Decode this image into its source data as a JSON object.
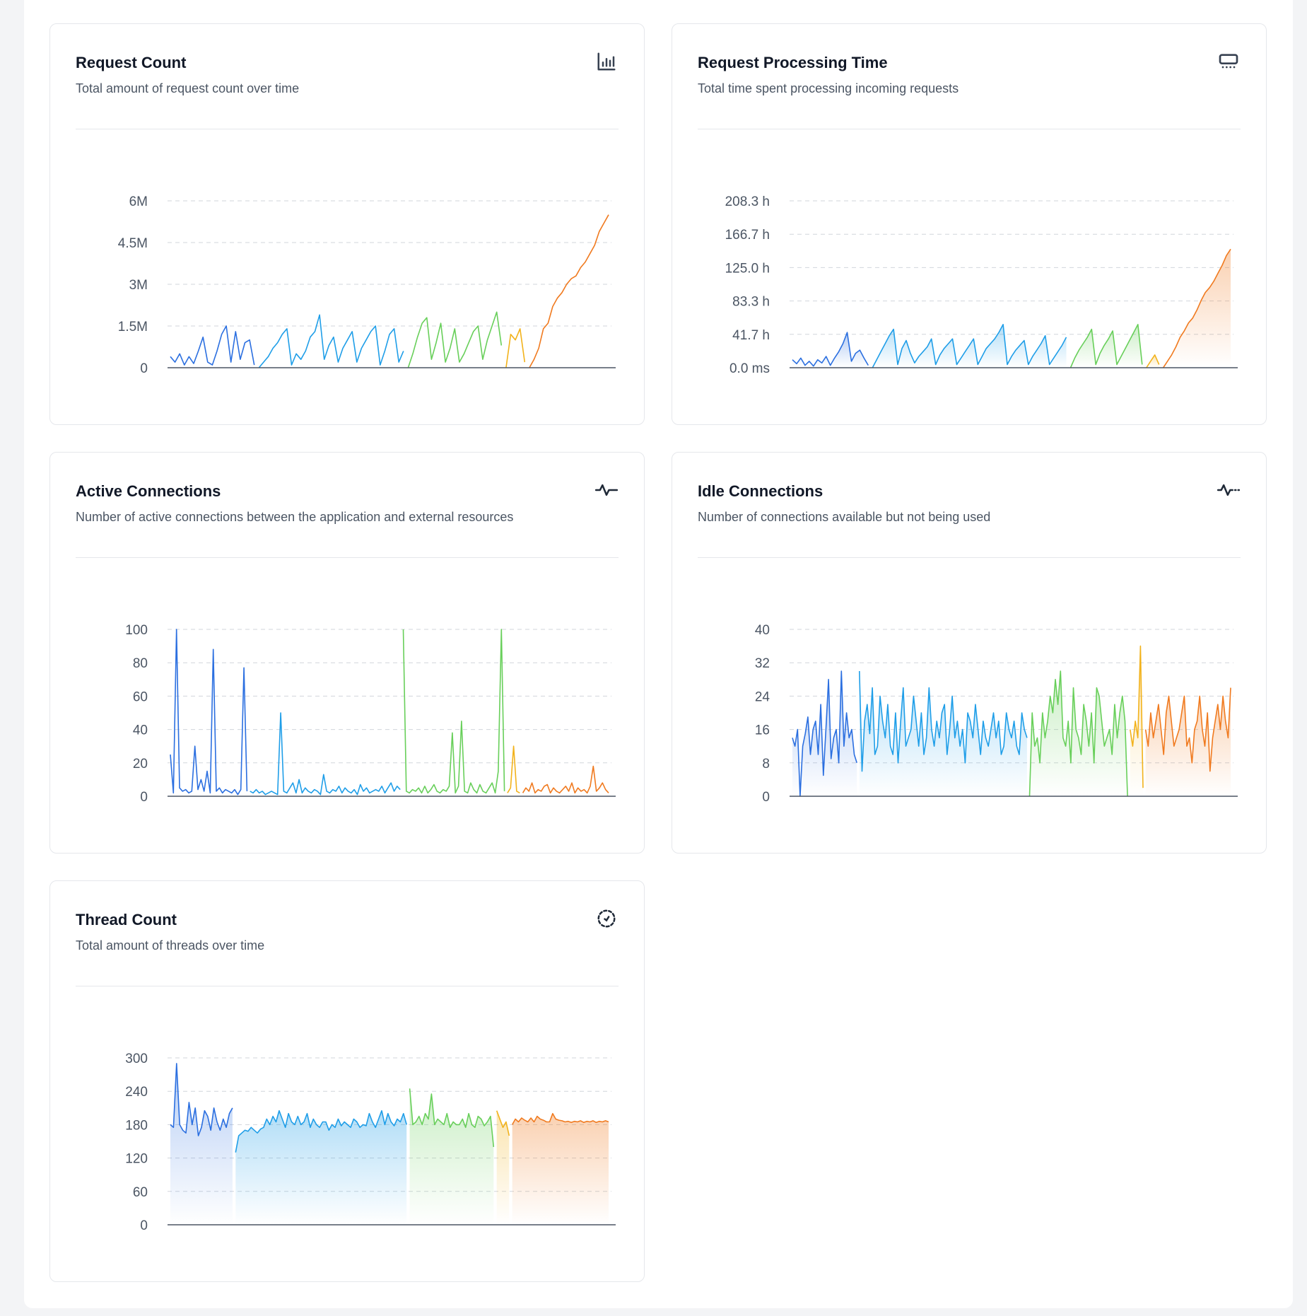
{
  "cards": [
    {
      "id": "request-count",
      "title": "Request Count",
      "subtitle": "Total amount of request count over time",
      "icon": "bar-chart-icon"
    },
    {
      "id": "request-processing-time",
      "title": "Request Processing Time",
      "subtitle": "Total time spent processing incoming requests",
      "icon": "server-icon"
    },
    {
      "id": "active-connections",
      "title": "Active Connections",
      "subtitle": "Number of active connections between the application and external resources",
      "icon": "activity-icon"
    },
    {
      "id": "idle-connections",
      "title": "Idle Connections",
      "subtitle": "Number of connections available but not being used",
      "icon": "activity-dotted-icon"
    },
    {
      "id": "thread-count",
      "title": "Thread Count",
      "subtitle": "Total amount of threads over time",
      "icon": "loader-circle-icon"
    }
  ],
  "segment_colors": [
    "#2b6fe0",
    "#1f9ee8",
    "#68cf5a",
    "#f2b21b",
    "#f07a1f"
  ],
  "chart_data": [
    {
      "type": "line",
      "title": "Request Count",
      "yticks": [
        "0",
        "1.5M",
        "3M",
        "4.5M",
        "6M"
      ],
      "ylim": [
        0,
        6000000
      ],
      "grid": true,
      "fill": false,
      "series": [
        {
          "values": [
            400000,
            200000,
            500000,
            100000,
            400000,
            150000,
            600000,
            1100000,
            200000,
            100000,
            600000,
            1200000,
            1500000,
            200000,
            1300000,
            300000,
            900000,
            1000000,
            100000
          ]
        },
        {
          "values": [
            0,
            200000,
            400000,
            700000,
            900000,
            1200000,
            1400000,
            100000,
            500000,
            300000,
            600000,
            1100000,
            1300000,
            1900000,
            300000,
            800000,
            1100000,
            200000,
            700000,
            1000000,
            1300000,
            200000,
            700000,
            1000000,
            1300000,
            1500000,
            100000,
            600000,
            1200000,
            1400000,
            200000,
            600000
          ]
        },
        {
          "values": [
            0,
            500000,
            1100000,
            1600000,
            1800000,
            300000,
            900000,
            1600000,
            200000,
            700000,
            1400000,
            200000,
            500000,
            900000,
            1300000,
            1500000,
            300000,
            1000000,
            1500000,
            2000000,
            800000
          ]
        },
        {
          "values": [
            0,
            1200000,
            1000000,
            1400000,
            200000
          ]
        },
        {
          "values": [
            0,
            300000,
            700000,
            1400000,
            1600000,
            2200000,
            2500000,
            2700000,
            3000000,
            3200000,
            3300000,
            3600000,
            3800000,
            4100000,
            4400000,
            4900000,
            5200000,
            5500000
          ]
        }
      ]
    },
    {
      "type": "area",
      "title": "Request Processing Time",
      "yticks": [
        "0.0 ms",
        "41.7 h",
        "83.3 h",
        "125.0 h",
        "166.7 h",
        "208.3 h"
      ],
      "ylim": [
        0,
        208.3
      ],
      "grid": true,
      "fill": true,
      "series": [
        {
          "values": [
            10,
            5,
            12,
            3,
            8,
            2,
            10,
            6,
            14,
            3,
            12,
            20,
            30,
            44,
            8,
            18,
            22,
            12,
            3
          ]
        },
        {
          "values": [
            0,
            10,
            20,
            30,
            40,
            48,
            4,
            24,
            34,
            18,
            6,
            14,
            20,
            26,
            36,
            4,
            16,
            24,
            30,
            36,
            4,
            12,
            20,
            28,
            36,
            4,
            14,
            24,
            30,
            36,
            44,
            54,
            4,
            14,
            22,
            28,
            34,
            4,
            14,
            22,
            30,
            40,
            4,
            12,
            20,
            28,
            38
          ]
        },
        {
          "values": [
            0,
            12,
            22,
            30,
            38,
            48,
            4,
            18,
            28,
            36,
            46,
            4,
            14,
            24,
            34,
            44,
            54,
            4
          ]
        },
        {
          "values": [
            0,
            8,
            16,
            4
          ]
        },
        {
          "values": [
            0,
            8,
            16,
            26,
            38,
            46,
            56,
            62,
            72,
            84,
            94,
            100,
            108,
            118,
            128,
            140,
            148
          ]
        }
      ]
    },
    {
      "type": "line",
      "title": "Active Connections",
      "yticks": [
        "0",
        "20",
        "40",
        "60",
        "80",
        "100"
      ],
      "ylim": [
        0,
        100
      ],
      "grid": true,
      "fill": false,
      "series": [
        {
          "values": [
            25,
            2,
            100,
            5,
            3,
            4,
            2,
            3,
            30,
            4,
            10,
            3,
            15,
            2,
            88,
            3,
            5,
            2,
            4,
            3,
            2,
            4,
            1,
            4,
            77,
            3
          ]
        },
        {
          "values": [
            3,
            2,
            4,
            2,
            3,
            1,
            2,
            3,
            2,
            1,
            50,
            3,
            2,
            5,
            8,
            2,
            10,
            2,
            5,
            3,
            2,
            4,
            3,
            1,
            13,
            3,
            2,
            4,
            3,
            6,
            2,
            5,
            3,
            2,
            4,
            1,
            7,
            3,
            5,
            2,
            3,
            4,
            3,
            6,
            2,
            5,
            8,
            3,
            6,
            4
          ]
        },
        {
          "values": [
            100,
            3,
            2,
            4,
            3,
            5,
            2,
            6,
            2,
            4,
            7,
            3,
            2,
            4,
            3,
            6,
            38,
            2,
            6,
            45,
            3,
            2,
            8,
            4,
            2,
            7,
            3,
            2,
            5,
            8,
            2,
            15,
            100,
            3
          ]
        },
        {
          "values": [
            2,
            5,
            30,
            3,
            2
          ]
        },
        {
          "values": [
            2,
            5,
            3,
            8,
            2,
            4,
            3,
            6,
            7,
            2,
            5,
            3,
            2,
            4,
            6,
            3,
            8,
            2,
            5,
            3,
            4,
            2,
            6,
            18,
            3,
            5,
            8,
            4,
            2
          ]
        }
      ]
    },
    {
      "type": "area",
      "title": "Idle Connections",
      "yticks": [
        "0",
        "8",
        "16",
        "24",
        "32",
        "40"
      ],
      "ylim": [
        0,
        40
      ],
      "grid": true,
      "fill": true,
      "series": [
        {
          "values": [
            14,
            12,
            16,
            0,
            12,
            15,
            19,
            10,
            16,
            18,
            10,
            22,
            5,
            16,
            28,
            9,
            14,
            16,
            8,
            30,
            12,
            20,
            14,
            16,
            10,
            8
          ]
        },
        {
          "values": [
            30,
            6,
            18,
            22,
            15,
            26,
            10,
            12,
            24,
            18,
            14,
            22,
            12,
            10,
            20,
            8,
            18,
            26,
            12,
            14,
            16,
            24,
            18,
            12,
            20,
            10,
            14,
            26,
            16,
            12,
            18,
            14,
            20,
            22,
            10,
            16,
            24,
            14,
            18,
            12,
            16,
            8,
            20,
            18,
            14,
            22,
            16,
            10,
            18,
            14,
            12,
            16,
            20,
            14,
            18,
            10,
            12,
            20,
            16,
            14,
            18,
            12,
            10,
            20,
            16,
            14
          ]
        },
        {
          "values": [
            0,
            20,
            12,
            14,
            8,
            20,
            14,
            18,
            24,
            20,
            28,
            22,
            30,
            14,
            12,
            18,
            8,
            26,
            16,
            14,
            10,
            22,
            18,
            12,
            20,
            8,
            26,
            24,
            18,
            12,
            14,
            16,
            10,
            22,
            14,
            20,
            24,
            18,
            0
          ]
        },
        {
          "values": [
            16,
            12,
            18,
            14,
            36,
            2
          ]
        },
        {
          "values": [
            16,
            12,
            20,
            14,
            18,
            22,
            16,
            10,
            20,
            24,
            18,
            12,
            14,
            16,
            20,
            24,
            12,
            14,
            8,
            16,
            18,
            24,
            16,
            12,
            20,
            6,
            14,
            18,
            22,
            16,
            24,
            18,
            14,
            26
          ]
        }
      ]
    },
    {
      "type": "area",
      "title": "Thread Count",
      "yticks": [
        "0",
        "60",
        "120",
        "180",
        "240",
        "300"
      ],
      "ylim": [
        0,
        300
      ],
      "grid": true,
      "fill": true,
      "series": [
        {
          "values": [
            180,
            175,
            290,
            180,
            170,
            165,
            220,
            180,
            210,
            160,
            175,
            205,
            195,
            170,
            210,
            185,
            170,
            190,
            175,
            200,
            210
          ]
        },
        {
          "values": [
            130,
            160,
            165,
            170,
            168,
            175,
            170,
            165,
            172,
            175,
            190,
            180,
            195,
            185,
            205,
            190,
            175,
            200,
            185,
            180,
            195,
            180,
            185,
            200,
            175,
            190,
            180,
            175,
            185,
            185,
            170,
            180,
            175,
            190,
            178,
            185,
            180,
            175,
            190,
            185,
            175,
            180,
            178,
            200,
            185,
            175,
            190,
            205,
            180,
            200,
            185,
            178,
            190,
            185,
            200,
            180
          ]
        },
        {
          "values": [
            245,
            180,
            185,
            195,
            180,
            200,
            190,
            235,
            180,
            190,
            185,
            180,
            200,
            175,
            185,
            180,
            180,
            190,
            175,
            200,
            180,
            175,
            195,
            190,
            178,
            185,
            195,
            140
          ]
        },
        {
          "values": [
            205,
            190,
            175,
            185,
            160
          ]
        },
        {
          "values": [
            180,
            190,
            185,
            192,
            188,
            185,
            192,
            185,
            195,
            190,
            188,
            185,
            185,
            200,
            190,
            188,
            187,
            185,
            186,
            184,
            186,
            185,
            187,
            184,
            186,
            185,
            187,
            184,
            186,
            185,
            187,
            185
          ]
        }
      ]
    }
  ]
}
